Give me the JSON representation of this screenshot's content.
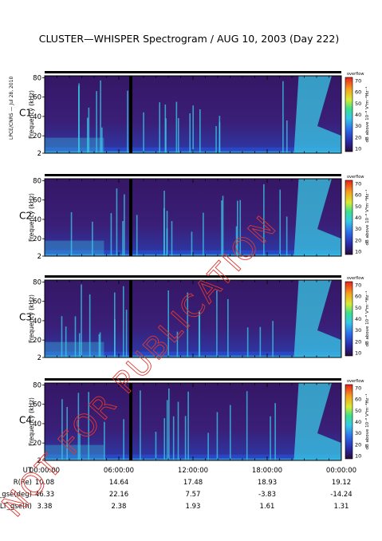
{
  "title": "CLUSTER—WHISPER Spectrogram / AUG 10, 2003 (Day 222)",
  "side_credit": "LPCE/CNRS — Jul 28, 2010",
  "watermark": "NOT FOR PUBLICATION",
  "chart_data": [
    {
      "type": "heatmap",
      "spacecraft": "C1",
      "spacecraft_color": "#000000",
      "ylabel": "Frequency (kHz)",
      "yticks": [
        2,
        20,
        40,
        60,
        80
      ],
      "ylim": [
        2,
        82
      ],
      "colorbar_label": "dB above 10⁻⁸ V²m⁻²Hz⁻¹",
      "colorbar_ticks": [
        10,
        20,
        30,
        40,
        50,
        60,
        70
      ],
      "colorbar_tag": "overflow"
    },
    {
      "type": "heatmap",
      "spacecraft": "C2",
      "spacecraft_color": "#000000",
      "ylabel": "Frequency (kHz)",
      "yticks": [
        2,
        20,
        40,
        60,
        80
      ],
      "ylim": [
        2,
        82
      ],
      "colorbar_label": "dB above 10⁻⁸ V²m⁻²Hz⁻¹",
      "colorbar_ticks": [
        10,
        20,
        30,
        40,
        50,
        60,
        70
      ],
      "colorbar_tag": "overflow"
    },
    {
      "type": "heatmap",
      "spacecraft": "C3",
      "spacecraft_color": "#2fb64a",
      "ylabel": "Frequency (kHz)",
      "yticks": [
        2,
        20,
        40,
        60,
        80
      ],
      "ylim": [
        2,
        82
      ],
      "colorbar_label": "dB above 10⁻⁸ V²m⁻²Hz⁻¹",
      "colorbar_ticks": [
        10,
        20,
        30,
        40,
        50,
        60,
        70
      ],
      "colorbar_tag": "overflow"
    },
    {
      "type": "heatmap",
      "spacecraft": "C4",
      "spacecraft_color": "#000000",
      "ylabel": "Frequency (kHz)",
      "yticks": [
        2,
        20,
        40,
        60,
        80
      ],
      "ylim": [
        2,
        82
      ],
      "colorbar_label": "dB above 10⁻⁸ V²m⁻²Hz⁻¹",
      "colorbar_ticks": [
        10,
        20,
        30,
        40,
        50,
        60,
        70
      ],
      "colorbar_tag": "overflow"
    }
  ],
  "ephemeris": {
    "rows": [
      {
        "label": "UT",
        "values": [
          "00:00:00",
          "06:00:00",
          "12:00:00",
          "18:00:00",
          "00:00:00"
        ]
      },
      {
        "label": "R(Re)",
        "values": [
          "10.08",
          "14.64",
          "17.48",
          "18.93",
          "19.12"
        ]
      },
      {
        "label": "Lat_gse(deg)",
        "values": [
          "46.33",
          "22.16",
          "7.57",
          "-3.83",
          "-14.24"
        ]
      },
      {
        "label": "LT_gse(h)",
        "values": [
          "3.38",
          "2.38",
          "1.93",
          "1.61",
          "1.31"
        ]
      }
    ]
  },
  "colors": {
    "spectro_bg": "#3a1a6b",
    "spectro_mid": "#2a49c8",
    "spectro_cyan": "#39c9e6",
    "watermark": "#e0382f",
    "gap": "#000000"
  }
}
